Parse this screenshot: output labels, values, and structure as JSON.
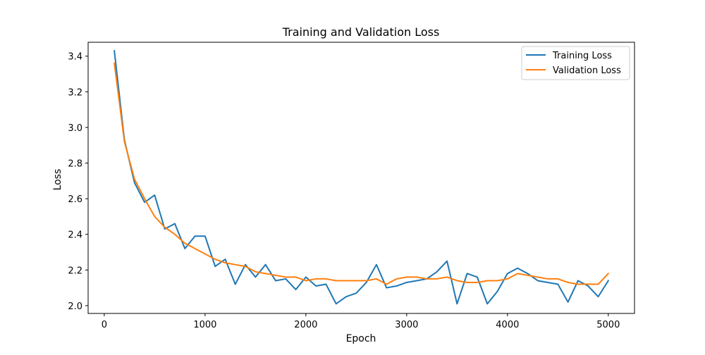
{
  "chart_data": {
    "type": "line",
    "title": "Training and Validation Loss",
    "xlabel": "Epoch",
    "ylabel": "Loss",
    "xlim": [
      -160,
      5260
    ],
    "ylim": [
      1.956,
      3.478
    ],
    "xticks": [
      0,
      1000,
      2000,
      3000,
      4000,
      5000
    ],
    "xtick_labels": [
      "0",
      "1000",
      "2000",
      "3000",
      "4000",
      "5000"
    ],
    "yticks": [
      2.0,
      2.2,
      2.4,
      2.6,
      2.8,
      3.0,
      3.2,
      3.4
    ],
    "ytick_labels": [
      "2.0",
      "2.2",
      "2.4",
      "2.6",
      "2.8",
      "3.0",
      "3.2",
      "3.4"
    ],
    "grid": false,
    "legend": "top-right",
    "x": [
      100,
      200,
      300,
      400,
      500,
      600,
      700,
      800,
      900,
      1000,
      1100,
      1200,
      1300,
      1400,
      1500,
      1600,
      1700,
      1800,
      1900,
      2000,
      2100,
      2200,
      2300,
      2400,
      2500,
      2600,
      2700,
      2800,
      2900,
      3000,
      3100,
      3200,
      3300,
      3400,
      3500,
      3600,
      3700,
      3800,
      3900,
      4000,
      4100,
      4200,
      4300,
      4400,
      4500,
      4600,
      4700,
      4800,
      4900,
      5000
    ],
    "series": [
      {
        "name": "Training Loss",
        "color": "#1f77b4",
        "values": [
          3.43,
          2.93,
          2.69,
          2.58,
          2.62,
          2.43,
          2.46,
          2.32,
          2.39,
          2.39,
          2.22,
          2.26,
          2.12,
          2.23,
          2.16,
          2.23,
          2.14,
          2.15,
          2.09,
          2.16,
          2.11,
          2.12,
          2.01,
          2.05,
          2.07,
          2.13,
          2.23,
          2.1,
          2.11,
          2.13,
          2.14,
          2.15,
          2.19,
          2.25,
          2.01,
          2.18,
          2.16,
          2.01,
          2.08,
          2.18,
          2.21,
          2.18,
          2.14,
          2.13,
          2.12,
          2.02,
          2.14,
          2.11,
          2.05,
          2.14
        ]
      },
      {
        "name": "Validation Loss",
        "color": "#ff7f0e",
        "values": [
          3.36,
          2.92,
          2.71,
          2.6,
          2.5,
          2.44,
          2.4,
          2.35,
          2.32,
          2.29,
          2.26,
          2.24,
          2.23,
          2.22,
          2.19,
          2.18,
          2.17,
          2.16,
          2.16,
          2.14,
          2.15,
          2.15,
          2.14,
          2.14,
          2.14,
          2.14,
          2.15,
          2.12,
          2.15,
          2.16,
          2.16,
          2.15,
          2.15,
          2.16,
          2.14,
          2.13,
          2.13,
          2.14,
          2.14,
          2.15,
          2.18,
          2.17,
          2.16,
          2.15,
          2.15,
          2.13,
          2.12,
          2.12,
          2.12,
          2.18
        ]
      }
    ]
  }
}
